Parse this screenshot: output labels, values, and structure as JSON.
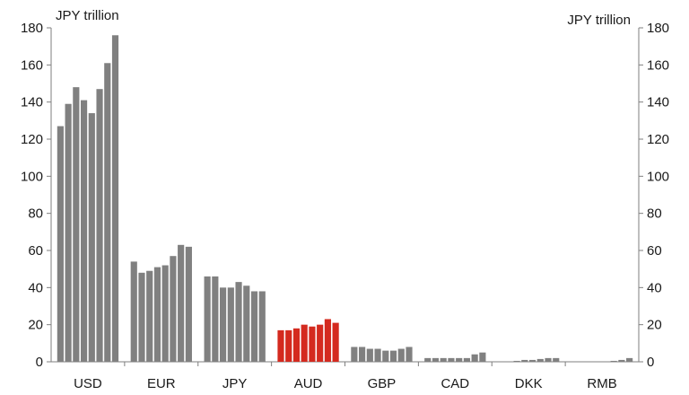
{
  "chart_data": {
    "type": "bar",
    "left_axis_unit": "JPY trillion",
    "right_axis_unit": "JPY trillion",
    "ylim": [
      0,
      180
    ],
    "yticks": [
      0,
      20,
      40,
      60,
      80,
      100,
      120,
      140,
      160,
      180
    ],
    "grid": false,
    "legend": "none",
    "colors": {
      "default": "#808080",
      "highlight": "#d42a1f"
    },
    "groups": [
      {
        "category": "USD",
        "highlight": false,
        "values": [
          127,
          139,
          148,
          141,
          134,
          147,
          161,
          176
        ]
      },
      {
        "category": "EUR",
        "highlight": false,
        "values": [
          54,
          48,
          49,
          51,
          52,
          57,
          63,
          62
        ]
      },
      {
        "category": "JPY",
        "highlight": false,
        "values": [
          46,
          46,
          40,
          40,
          43,
          41,
          38,
          38
        ]
      },
      {
        "category": "AUD",
        "highlight": true,
        "values": [
          17,
          17,
          18,
          20,
          19,
          20,
          23,
          21
        ]
      },
      {
        "category": "GBP",
        "highlight": false,
        "values": [
          8,
          8,
          7,
          7,
          6,
          6,
          7,
          8
        ]
      },
      {
        "category": "CAD",
        "highlight": false,
        "values": [
          2,
          2,
          2,
          2,
          2,
          2,
          4,
          5
        ]
      },
      {
        "category": "DKK",
        "highlight": false,
        "values": [
          0,
          0,
          0.5,
          1,
          1,
          1.5,
          2,
          2
        ]
      },
      {
        "category": "RMB",
        "highlight": false,
        "values": [
          0,
          0,
          0,
          0,
          0,
          0.5,
          1,
          2
        ]
      }
    ]
  }
}
